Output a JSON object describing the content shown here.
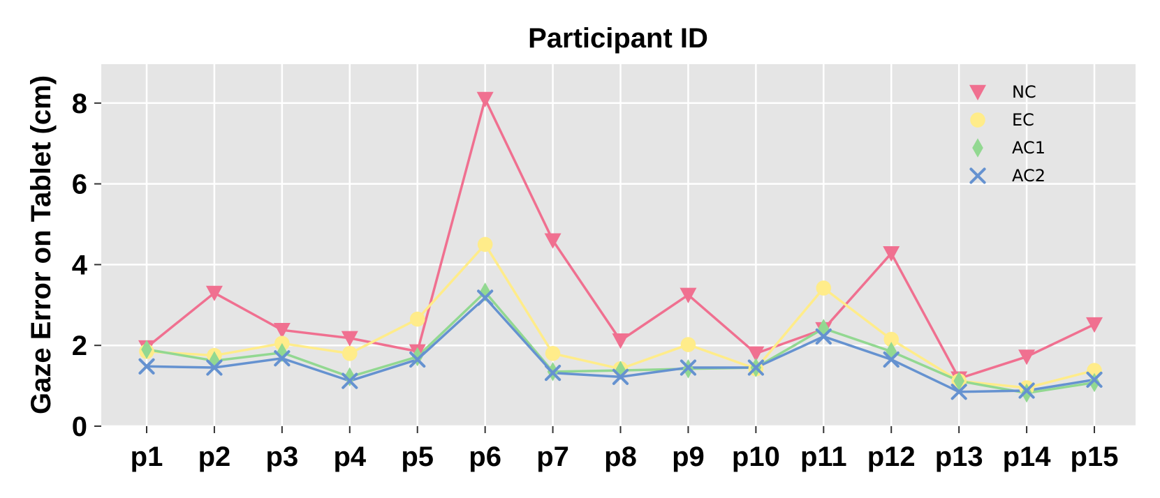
{
  "chart_data": {
    "type": "line",
    "title": "Participant ID",
    "xlabel": "",
    "ylabel": "Gaze Error on Tablet (cm)",
    "ylim": [
      0,
      9
    ],
    "yticks": [
      0,
      2,
      4,
      6,
      8
    ],
    "ytick_labels": [
      "0",
      "2",
      "4",
      "6",
      "8"
    ],
    "grid": true,
    "legend_position": "top-right",
    "categories": [
      "p1",
      "p2",
      "p3",
      "p4",
      "p5",
      "p6",
      "p7",
      "p8",
      "p9",
      "p10",
      "p11",
      "p12",
      "p13",
      "p14",
      "p15"
    ],
    "series": [
      {
        "name": "NC",
        "marker": "triangle-down",
        "color": "#f07090",
        "values": [
          1.95,
          3.3,
          2.38,
          2.18,
          1.85,
          8.1,
          4.6,
          2.12,
          3.25,
          1.8,
          2.4,
          4.28,
          1.18,
          1.72,
          2.52
        ]
      },
      {
        "name": "EC",
        "marker": "circle",
        "color": "#ffec8a",
        "values": [
          1.85,
          1.75,
          2.05,
          1.8,
          2.65,
          4.5,
          1.8,
          1.42,
          2.02,
          1.42,
          3.42,
          2.15,
          1.12,
          0.95,
          1.38
        ]
      },
      {
        "name": "AC1",
        "marker": "diamond",
        "color": "#92d891",
        "values": [
          1.9,
          1.62,
          1.82,
          1.22,
          1.72,
          3.32,
          1.35,
          1.38,
          1.42,
          1.45,
          2.42,
          1.85,
          1.12,
          0.82,
          1.08
        ]
      },
      {
        "name": "AC2",
        "marker": "x",
        "color": "#6592d0",
        "values": [
          1.48,
          1.45,
          1.68,
          1.12,
          1.65,
          3.18,
          1.32,
          1.22,
          1.45,
          1.45,
          2.22,
          1.65,
          0.85,
          0.88,
          1.15
        ]
      }
    ]
  }
}
